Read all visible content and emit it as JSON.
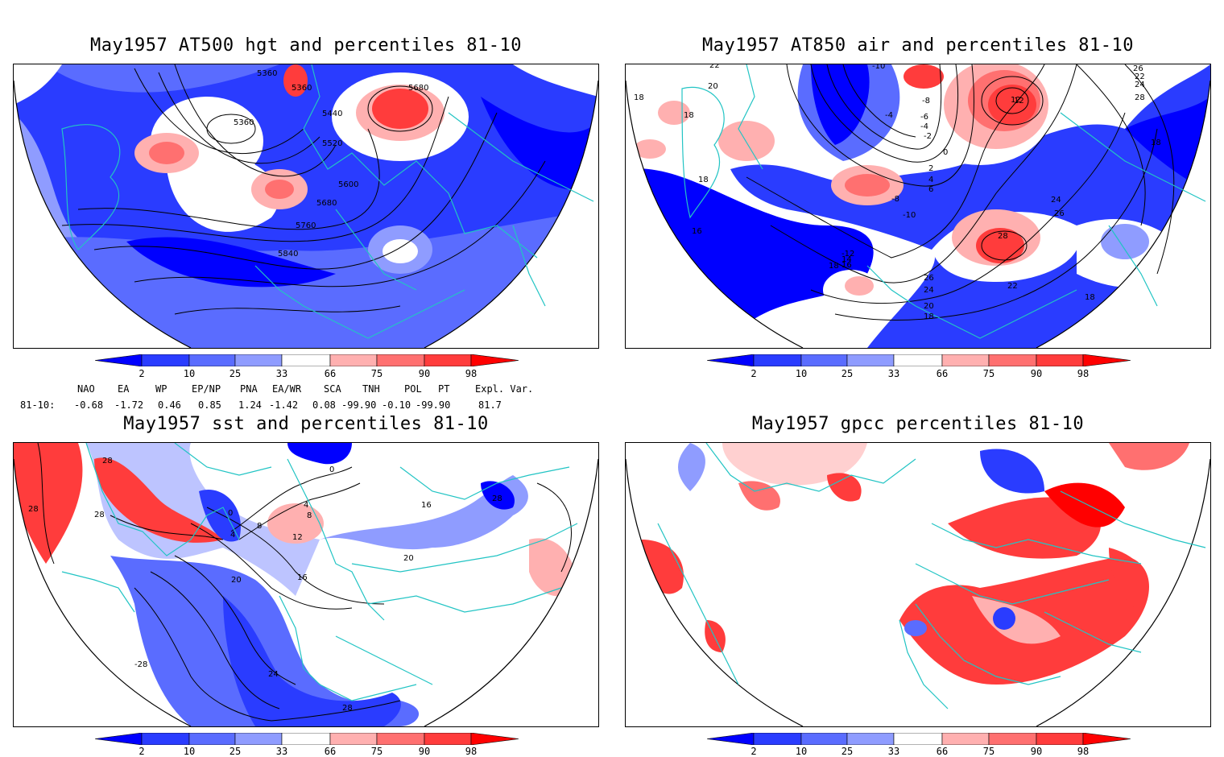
{
  "panels": [
    {
      "title": "May1957 AT500 hgt and percentiles 81-10",
      "contour_labels": [
        "5360",
        "5360",
        "5360",
        "5440",
        "5520",
        "5600",
        "5680",
        "5680",
        "5760",
        "5840"
      ]
    },
    {
      "title": "May1957 AT850 air and percentiles 81-10",
      "contour_labels": [
        "22",
        "20",
        "18",
        "18",
        "18",
        "16",
        "-10",
        "-8",
        "-6",
        "-4",
        "-4",
        "-2",
        "0",
        "2",
        "4",
        "6",
        "-8",
        "-10",
        "-12",
        "12",
        "14",
        "16",
        "18",
        "24",
        "26",
        "28",
        "26",
        "24",
        "22",
        "22",
        "20",
        "18",
        "18",
        "12",
        "24",
        "26",
        "28",
        "18"
      ]
    },
    {
      "title": "May1957 sst and percentiles 81-10",
      "contour_labels": [
        "28",
        "28",
        "28",
        "0",
        "4",
        "8",
        "0",
        "4",
        "8",
        "12",
        "16",
        "20",
        "24",
        "28",
        "-28",
        "16",
        "20",
        "28"
      ]
    },
    {
      "title": "May1957 gpcc percentiles 81-10",
      "contour_labels": []
    }
  ],
  "colorbar": {
    "ticks": [
      "2",
      "10",
      "25",
      "33",
      "66",
      "75",
      "90",
      "98"
    ],
    "colors": [
      "#0000ff",
      "#2a3cff",
      "#5a6cff",
      "#8f9cff",
      "#ffffff",
      "#ffb0b0",
      "#ff7070",
      "#ff3c3c",
      "#ff0000"
    ]
  },
  "indices": {
    "row_label": "81-10:",
    "headers": [
      "NAO",
      "EA",
      "WP",
      "EP/NP",
      "PNA",
      "EA/WR",
      "SCA",
      "TNH",
      "POL",
      "PT",
      "Expl. Var."
    ],
    "values": [
      "-0.68",
      "-1.72",
      "0.46",
      "0.85",
      "1.24",
      "-1.42",
      "0.08",
      "-99.90",
      "-0.10",
      "-99.90",
      "81.7"
    ]
  },
  "colors": {
    "coast": "#22c4c4",
    "blue": "#2a3cff",
    "red": "#ff3c3c"
  }
}
